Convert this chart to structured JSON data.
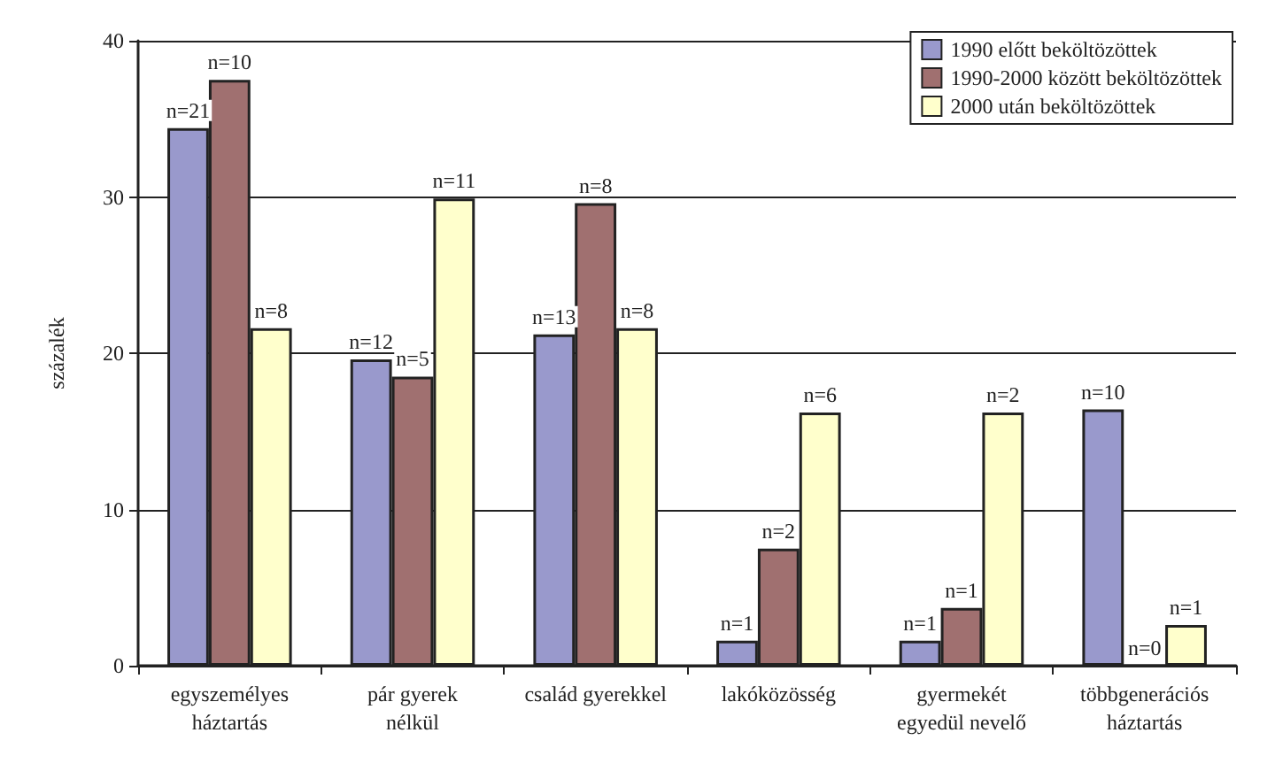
{
  "chart_data": {
    "type": "bar",
    "ylabel": "százalék",
    "categories": [
      "egyszemélyes\nháztartás",
      "pár gyerek\nnélkül",
      "család gyerekkel",
      "lakóközösség",
      "gyermekét\negyedül nevelő",
      "többgenerációs\nháztartás"
    ],
    "series": [
      {
        "name": "1990 előtt beköltözöttek",
        "color": "#9999cc",
        "values": [
          34.4,
          19.6,
          21.2,
          1.6,
          1.6,
          16.4
        ]
      },
      {
        "name": "1990-2000 között beköltözöttek",
        "color": "#a07070",
        "values": [
          37.5,
          18.5,
          29.6,
          7.5,
          3.7,
          0
        ]
      },
      {
        "name": "2000 után beköltözöttek",
        "color": "#ffffcc",
        "values": [
          21.6,
          29.9,
          21.6,
          16.2,
          16.2,
          2.6
        ]
      }
    ],
    "annotations": [
      "n=21",
      "n=10",
      "n=8",
      "n=12",
      "n=5",
      "n=11",
      "n=13",
      "n=8",
      "n=8",
      "n=1",
      "n=2",
      "n=6",
      "n=1",
      "n=1",
      "n=2",
      "n=10",
      "n=0",
      "n=1"
    ],
    "ylim": [
      0,
      40
    ],
    "yticks": [
      0,
      10,
      20,
      30,
      40
    ],
    "grid": "y",
    "legend": "top right"
  }
}
